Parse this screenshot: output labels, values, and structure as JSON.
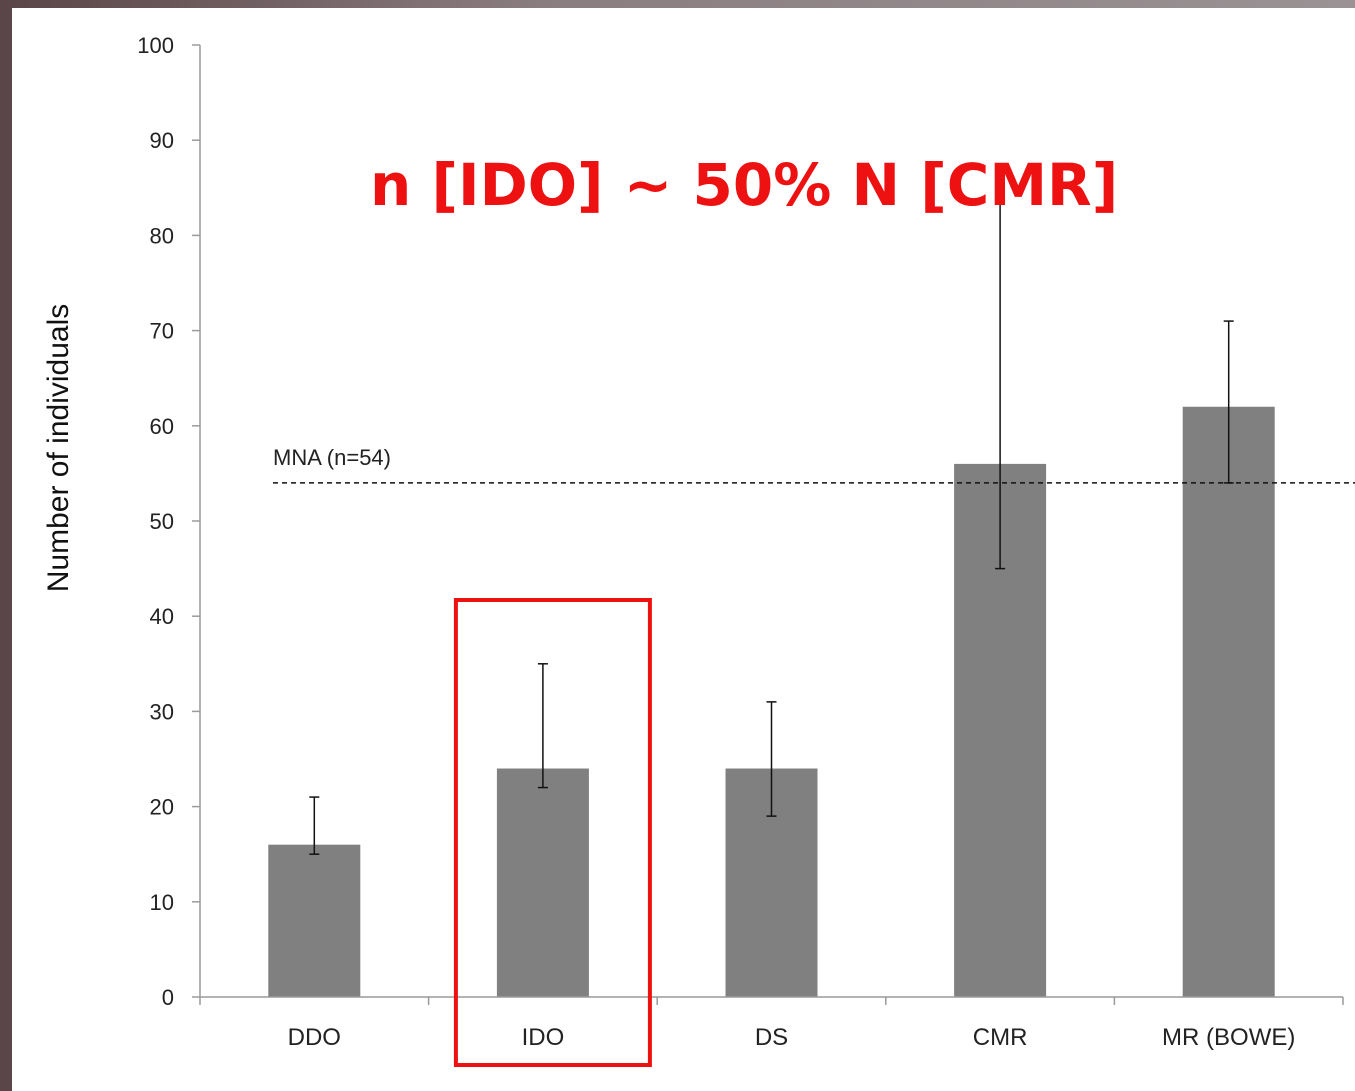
{
  "chart_data": {
    "type": "bar",
    "categories": [
      "DDO",
      "IDO",
      "DS",
      "CMR",
      "MR (BOWE)"
    ],
    "values": [
      16,
      24,
      24,
      56,
      62
    ],
    "error_low": [
      15,
      22,
      19,
      45,
      54
    ],
    "error_high": [
      21,
      35,
      31,
      87,
      71
    ],
    "ylabel": "Number of individuals",
    "ylim": [
      0,
      100
    ],
    "yticks": [
      0,
      10,
      20,
      30,
      40,
      50,
      60,
      70,
      80,
      90,
      100
    ],
    "reference_line": {
      "value": 54,
      "label": "MNA (n=54)"
    },
    "annotation": "n [IDO] ~ 50% N [CMR]",
    "highlighted_category": "IDO",
    "colors": {
      "bar": "#808080",
      "highlight": "#ee1111",
      "annotation": "#ee1111"
    }
  }
}
